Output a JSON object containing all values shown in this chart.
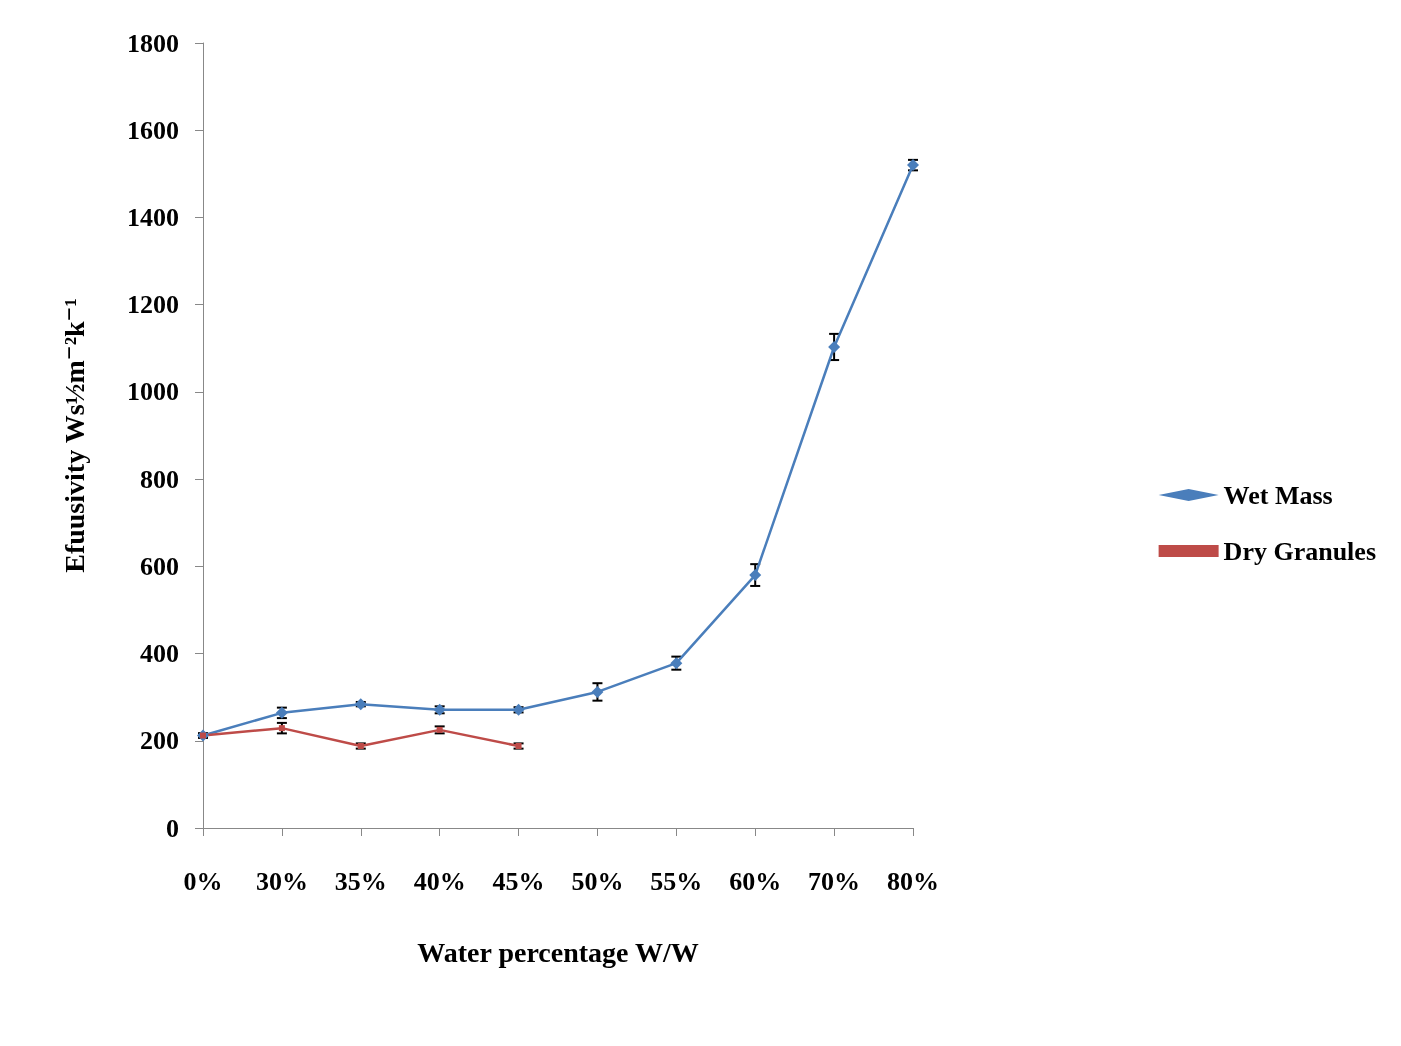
{
  "chart_data": {
    "type": "line",
    "xlabel": "Water percentage W/W",
    "ylabel": "Efuusivity Ws½m⁻²k⁻¹",
    "categories": [
      "0%",
      "30%",
      "35%",
      "40%",
      "45%",
      "50%",
      "55%",
      "60%",
      "70%",
      "80%"
    ],
    "series": [
      {
        "name": "Wet Mass",
        "color": "#4a7ebb",
        "marker": "diamond",
        "values": [
          212,
          264,
          284,
          271,
          271,
          312,
          378,
          580,
          1103,
          1520
        ],
        "errors": [
          5,
          12,
          5,
          8,
          6,
          20,
          15,
          25,
          30,
          12
        ]
      },
      {
        "name": "Dry Granules",
        "color": "#be4b48",
        "marker": "square",
        "values": [
          212,
          229,
          188,
          225,
          188,
          null,
          null,
          null,
          null,
          null
        ],
        "errors": [
          5,
          12,
          6,
          8,
          6,
          null,
          null,
          null,
          null,
          null
        ]
      }
    ],
    "ylim": [
      0,
      1800
    ],
    "yticks": [
      0,
      200,
      400,
      600,
      800,
      1000,
      1200,
      1400,
      1600,
      1800
    ],
    "grid": false,
    "legend": "right",
    "line_style": "solid"
  }
}
